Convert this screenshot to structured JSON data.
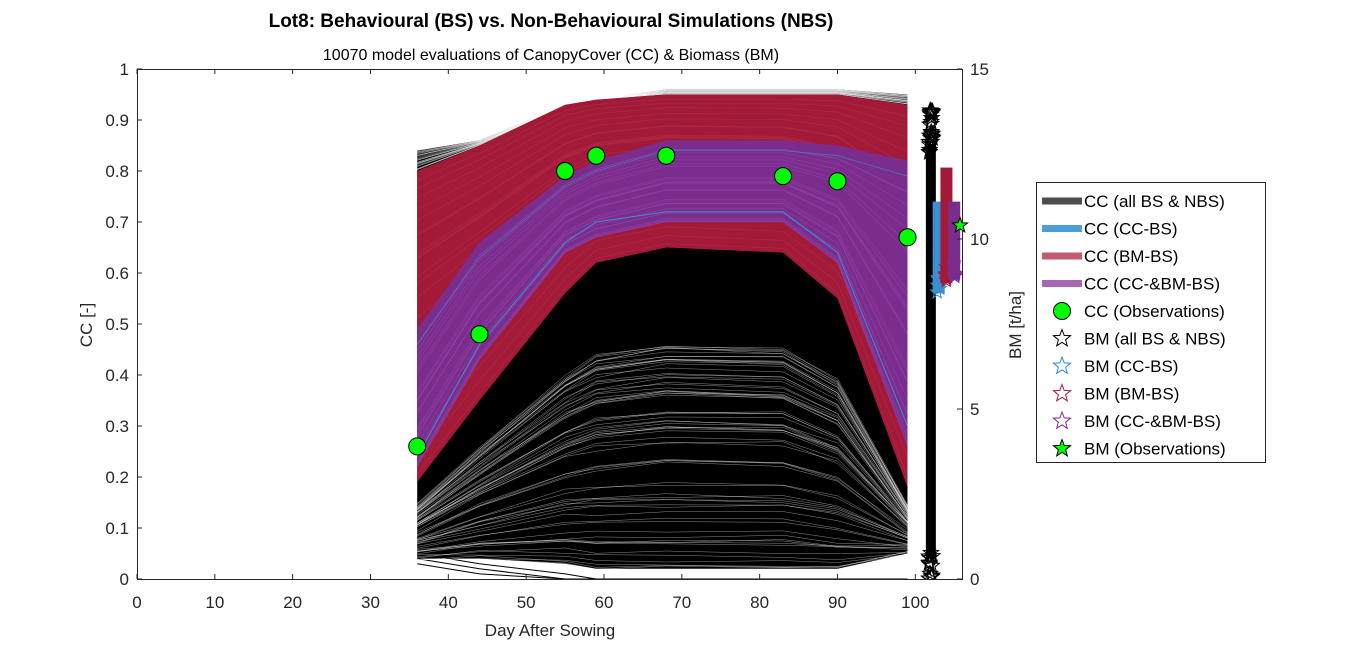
{
  "chart_data": {
    "type": "line",
    "title": "Lot8: Behavioural (BS) vs. Non-Behavioural Simulations (NBS)",
    "subtitle": "10070 model evaluations of CanopyCover (CC) & Biomass (BM)",
    "xlabel": "Day After Sowing",
    "ylabel_left": "CC [-]",
    "ylabel_right": "BM [t/ha]",
    "xlim": [
      0,
      106
    ],
    "ylim_left": [
      0,
      1
    ],
    "ylim_right": [
      0,
      15
    ],
    "x_ticks": [
      "0",
      "10",
      "20",
      "30",
      "40",
      "50",
      "60",
      "70",
      "80",
      "90",
      "100"
    ],
    "y_ticks_left": [
      "0",
      "0.1",
      "0.2",
      "0.3",
      "0.4",
      "0.5",
      "0.6",
      "0.7",
      "0.8",
      "0.9",
      "1"
    ],
    "y_ticks_right": [
      "0",
      "5",
      "10",
      "15"
    ],
    "grid": false,
    "legend_position": "outside-right",
    "colors": {
      "all": "#000000",
      "cc_bs": "#3b8fd0",
      "bm_bs": "#a21a37",
      "ccbm_bs": "#7b2d8e",
      "obs": "#00ff00"
    },
    "legend": [
      {
        "label": "CC (all BS & NBS)",
        "marker": "line",
        "color": "#4d4d4d"
      },
      {
        "label": "CC (CC-BS)",
        "marker": "line",
        "color": "#4a9fd6"
      },
      {
        "label": "CC (BM-BS)",
        "marker": "line",
        "color": "#c25b6c"
      },
      {
        "label": "CC (CC-&BM-BS)",
        "marker": "line",
        "color": "#a666b4"
      },
      {
        "label": "CC (Observations)",
        "marker": "circle",
        "color": "#00ff00"
      },
      {
        "label": "BM (all BS & NBS)",
        "marker": "star-open",
        "color": "#000000"
      },
      {
        "label": "BM (CC-BS)",
        "marker": "star-open",
        "color": "#2a8ad4"
      },
      {
        "label": "BM (BM-BS)",
        "marker": "star-open",
        "color": "#a21a37"
      },
      {
        "label": "BM (CC-&BM-BS)",
        "marker": "star-open",
        "color": "#7b2d8e"
      },
      {
        "label": "BM (Observations)",
        "marker": "star-filled",
        "color": "#00ff00"
      }
    ],
    "cc_simulation_envelopes": {
      "x": [
        36,
        44,
        55,
        59,
        68,
        83,
        90,
        99
      ],
      "all_bs_nbs": {
        "lower": [
          0.04,
          0.04,
          0.03,
          0.02,
          0.02,
          0.02,
          0.02,
          0.05
        ],
        "upper": [
          0.84,
          0.86,
          0.93,
          0.94,
          0.96,
          0.96,
          0.96,
          0.95
        ]
      },
      "bm_bs": {
        "lower": [
          0.19,
          0.35,
          0.56,
          0.62,
          0.65,
          0.64,
          0.55,
          0.18
        ],
        "upper": [
          0.8,
          0.85,
          0.93,
          0.94,
          0.95,
          0.95,
          0.95,
          0.93
        ]
      },
      "ccbm_bs": {
        "lower": [
          0.22,
          0.43,
          0.64,
          0.67,
          0.7,
          0.7,
          0.62,
          0.26
        ],
        "upper": [
          0.49,
          0.66,
          0.79,
          0.82,
          0.86,
          0.86,
          0.85,
          0.82
        ]
      },
      "cc_bs": {
        "lower": [
          0.24,
          0.46,
          0.66,
          0.7,
          0.72,
          0.72,
          0.64,
          0.3
        ],
        "upper": [
          0.46,
          0.63,
          0.77,
          0.8,
          0.84,
          0.84,
          0.83,
          0.79
        ]
      }
    },
    "cc_observations": {
      "x": [
        36,
        44,
        55,
        59,
        68,
        83,
        90,
        99
      ],
      "y": [
        0.26,
        0.48,
        0.8,
        0.83,
        0.83,
        0.79,
        0.78,
        0.67
      ]
    },
    "bm_simulations": {
      "all_bs_nbs": {
        "x": 102,
        "range": [
          0,
          13.8
        ]
      },
      "cc_bs": {
        "x": 103,
        "range": [
          8.4,
          11.1
        ]
      },
      "bm_bs": {
        "x": 104,
        "range": [
          8.7,
          12.1
        ]
      },
      "ccbm_bs": {
        "x": 105,
        "range": [
          8.8,
          11.1
        ]
      }
    },
    "bm_observations": {
      "x": [
        106
      ],
      "y": [
        10.4
      ]
    }
  }
}
